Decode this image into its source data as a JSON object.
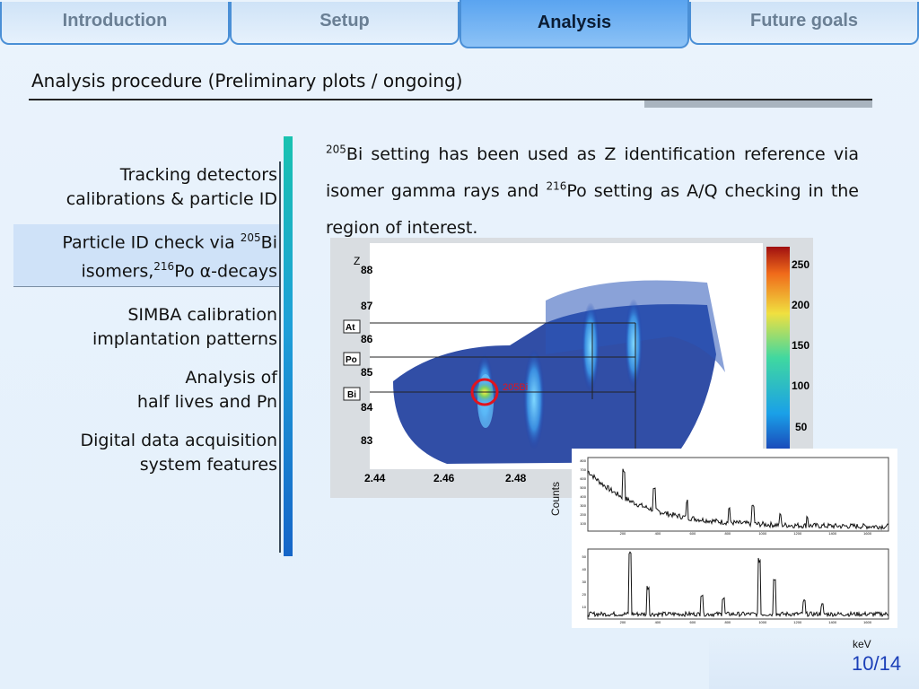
{
  "tabs": [
    {
      "label": "Introduction",
      "active": false
    },
    {
      "label": "Setup",
      "active": false
    },
    {
      "label": "Analysis",
      "active": true
    },
    {
      "label": "Future goals",
      "active": false
    }
  ],
  "slide_title": "Analysis procedure (Preliminary plots / ongoing)",
  "sidebar": {
    "items": [
      {
        "line1": "Tracking detectors",
        "line2": "calibrations & particle ID"
      },
      {
        "line1_pre": "Particle ID check via ",
        "line1_sup": "205",
        "line1_post": "Bi",
        "line2_pre": "isomers,",
        "line2_sup": "216",
        "line2_post": "Po α-decays"
      },
      {
        "line1": "SIMBA calibration",
        "line2": "implantation patterns"
      },
      {
        "line1": "Analysis of",
        "line2": "half lives and Pn"
      },
      {
        "line1": "Digital data acquisition",
        "line2": "system features"
      }
    ]
  },
  "paragraph": {
    "sup1": "205",
    "part1": "Bi setting has been used as Z identification reference via isomer gamma rays and ",
    "sup2": "216",
    "part2": "Po setting as A/Q checking in the region of interest."
  },
  "pid_plot": {
    "z_axis_label": "Z",
    "y_ticks": [
      "88",
      "87",
      "86",
      "85",
      "84",
      "83"
    ],
    "x_ticks": [
      "2.44",
      "2.46",
      "2.48"
    ],
    "element_labels": [
      "At",
      "Po",
      "Bi"
    ],
    "marker_label": "205Bi",
    "colorbar_ticks": [
      "250",
      "200",
      "150",
      "100",
      "50"
    ]
  },
  "spectrum": {
    "ylabel": "Counts",
    "xlabel": "keV",
    "x_ticks": [
      "200",
      "400",
      "600",
      "800",
      "1000",
      "1200",
      "1400",
      "1600"
    ],
    "top_y_ticks": [
      "800",
      "700",
      "600",
      "500",
      "400",
      "300",
      "200",
      "100"
    ],
    "bottom_y_ticks": [
      "50",
      "40",
      "30",
      "20",
      "10"
    ]
  },
  "page": {
    "current": "10",
    "total": "14",
    "separator": "/"
  },
  "colors": {
    "accent": "#4a8fd6",
    "active_tab": "#5aa4f0",
    "pager": "#1b3fb8",
    "marker": "#e0141e"
  }
}
